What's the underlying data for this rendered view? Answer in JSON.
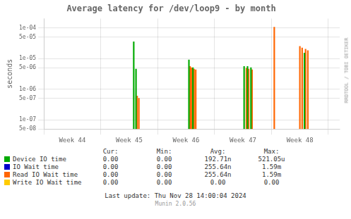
{
  "chart_data": {
    "type": "bar",
    "title": "Average latency for /dev/loop9 - by month",
    "y_label": "seconds",
    "log": "y",
    "grid": true,
    "xlim": [
      -0.5,
      4.7
    ],
    "xticks": [
      {
        "value": 0,
        "label": "Week 44"
      },
      {
        "value": 1,
        "label": "Week 45"
      },
      {
        "value": 2,
        "label": "Week 46"
      },
      {
        "value": 3,
        "label": "Week 47"
      },
      {
        "value": 4,
        "label": "Week 48"
      }
    ],
    "ylim": [
      5e-08,
      0.0002
    ],
    "yticks": [
      {
        "value": 5e-08,
        "label": "5e-08"
      },
      {
        "value": 1e-07,
        "label": "1e-07"
      },
      {
        "value": 5e-07,
        "label": "5e-07"
      },
      {
        "value": 1e-06,
        "label": "1e-06"
      },
      {
        "value": 5e-06,
        "label": "5e-06"
      },
      {
        "value": 1e-05,
        "label": "1e-05"
      },
      {
        "value": 5e-05,
        "label": "5e-05"
      },
      {
        "value": 0.0001,
        "label": "1e-04"
      }
    ],
    "stats_headers": [
      "Cur:",
      "Min:",
      "Avg:",
      "Max:"
    ],
    "series": [
      {
        "name": "Device IO time",
        "color": "#00aa00",
        "x": [
          1.08,
          1.12,
          2.05,
          2.12,
          3.02,
          3.08,
          3.14,
          4.08
        ],
        "values": [
          3.5e-05,
          4.5e-06,
          9e-06,
          5e-06,
          5.5e-06,
          5.5e-06,
          5e-06,
          1.5e-05
        ],
        "stats": [
          "0.00",
          "0.00",
          "192.71n",
          "521.05u"
        ]
      },
      {
        "name": "IO Wait time",
        "color": "#0000cc",
        "x": [],
        "values": [],
        "stats": [
          "0.00",
          "0.00",
          "255.64n",
          "1.59m"
        ]
      },
      {
        "name": "Read IO Wait time",
        "color": "#ff6600",
        "x": [
          1.14,
          1.17,
          2.07,
          2.09,
          2.11,
          2.14,
          2.17,
          3.06,
          3.1,
          3.16,
          3.55,
          4.0,
          4.04,
          4.1,
          4.14
        ],
        "values": [
          6e-07,
          5e-07,
          5.5e-06,
          5e-06,
          4.8e-06,
          4.5e-06,
          4.3e-06,
          4.8e-06,
          4.5e-06,
          4.3e-06,
          0.000105,
          2.5e-05,
          2.2e-05,
          2e-05,
          1.8e-05
        ],
        "stats": [
          "0.00",
          "0.00",
          "255.64n",
          "1.59m"
        ]
      },
      {
        "name": "Write IO Wait time",
        "color": "#ffcc00",
        "x": [],
        "values": [],
        "stats": [
          "0.00",
          "0.00",
          "0.00",
          "0.00"
        ]
      }
    ],
    "annotations": [
      "RRDTOOL / TOBI OETIKER",
      "Last update: Thu Nov 28 14:00:04 2024",
      "Munin 2.0.56"
    ]
  }
}
